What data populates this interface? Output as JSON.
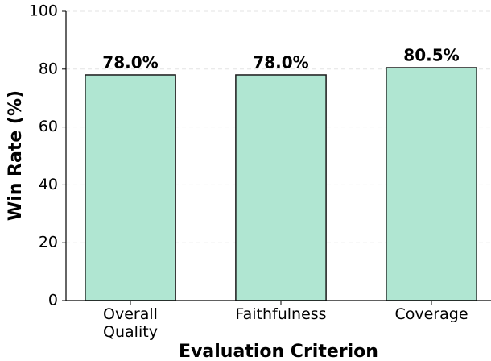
{
  "chart_data": {
    "type": "bar",
    "categories": [
      "Overall Quality",
      "Faithfulness",
      "Coverage"
    ],
    "values": [
      78.0,
      78.0,
      80.5
    ],
    "value_labels": [
      "78.0%",
      "78.0%",
      "80.5%"
    ],
    "color": "#b0e6d2",
    "xlabel": "Evaluation Criterion",
    "ylabel": "Win Rate (%)",
    "ylim": [
      0,
      100
    ],
    "yticks": [
      0,
      20,
      40,
      60,
      80,
      100
    ],
    "grid": true
  }
}
